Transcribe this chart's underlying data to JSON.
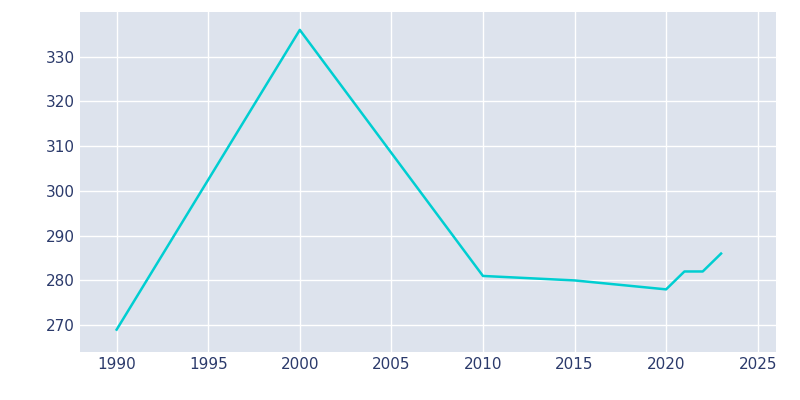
{
  "years": [
    1990,
    2000,
    2010,
    2015,
    2020,
    2021,
    2022,
    2023
  ],
  "population": [
    269,
    336,
    281,
    280,
    278,
    282,
    282,
    286
  ],
  "line_color": "#00CED1",
  "plot_bg_color": "#DDE3ED",
  "figure_bg_color": "#FFFFFF",
  "grid_color": "#FFFFFF",
  "tick_label_color": "#2B3A6B",
  "xlim": [
    1988,
    2026
  ],
  "ylim": [
    264,
    340
  ],
  "xticks": [
    1990,
    1995,
    2000,
    2005,
    2010,
    2015,
    2020,
    2025
  ],
  "yticks": [
    270,
    280,
    290,
    300,
    310,
    320,
    330
  ],
  "line_width": 1.8
}
